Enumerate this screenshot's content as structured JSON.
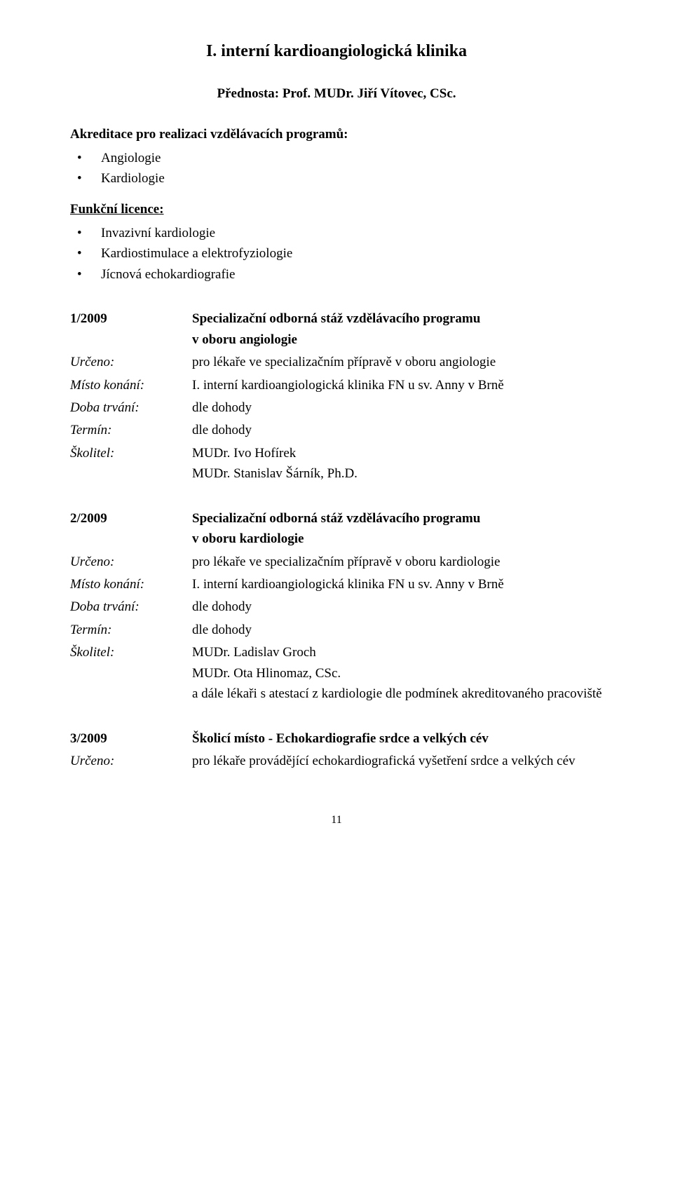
{
  "title": "I.    interní kardioangiologická klinika",
  "subtitle": "Přednosta: Prof. MUDr. Jiří Vítovec, CSc.",
  "accreditation": {
    "heading": "Akreditace pro realizaci vzdělávacích programů:",
    "items": [
      "Angiologie",
      "Kardiologie"
    ]
  },
  "license": {
    "heading": "Funkční licence:",
    "items": [
      "Invazivní kardiologie",
      "Kardiostimulace a elektrofyziologie",
      "Jícnová echokardiografie"
    ]
  },
  "labels": {
    "urceno": "Určeno:",
    "misto": "Místo konání:",
    "doba": "Doba trvání:",
    "termin": "Termín:",
    "skolitel": "Školitel:"
  },
  "entries": [
    {
      "id": "1/2009",
      "title_lines": [
        "Specializační odborná stáž vzdělávacího programu",
        "v oboru angiologie"
      ],
      "urceno": "pro lékaře ve specializačním přípravě v oboru angiologie",
      "misto": "I. interní kardioangiologická klinika  FN  u sv. Anny v Brně",
      "doba": "dle dohody",
      "termin": "dle dohody",
      "skolitel_lines": [
        "MUDr. Ivo  Hofírek",
        "MUDr. Stanislav  Šárník, Ph.D."
      ]
    },
    {
      "id": "2/2009",
      "title_lines": [
        "Specializační odborná stáž vzdělávacího programu",
        "v oboru kardiologie"
      ],
      "urceno": "pro lékaře ve specializačním přípravě v oboru kardiologie",
      "misto": "I. interní kardioangiologická klinika  FN  u sv. Anny v Brně",
      "doba": "dle dohody",
      "termin": "dle dohody",
      "skolitel_lines": [
        "MUDr. Ladislav Groch",
        "MUDr. Ota Hlinomaz, CSc.",
        "a dále lékaři s atestací z kardiologie dle podmínek akreditovaného pracoviště"
      ]
    },
    {
      "id": "3/2009",
      "title_lines": [
        "Školicí místo - Echokardiografie srdce a velkých cév"
      ],
      "urceno": "pro lékaře provádějící echokardiografická vyšetření srdce a velkých cév"
    }
  ],
  "page_number": "11",
  "bullet_char": "•"
}
